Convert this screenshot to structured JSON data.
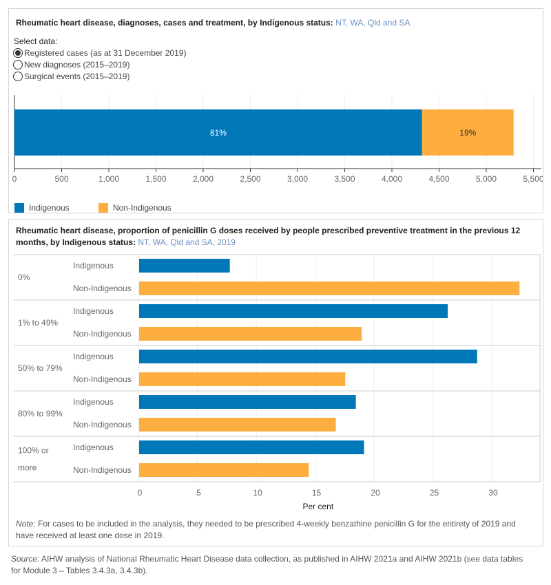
{
  "colors": {
    "indigenous": "#0078b8",
    "non_indigenous": "#fdae3f"
  },
  "top": {
    "title": "Rheumatic heart disease, diagnoses, cases and treatment, by Indigenous status:",
    "title_sub": "NT, WA, Qld and SA",
    "select_label": "Select data:",
    "options": [
      {
        "label": "Registered cases (as at 31 December 2019)",
        "selected": true
      },
      {
        "label": "New diagnoses (2015–2019)",
        "selected": false
      },
      {
        "label": "Surgical events (2015–2019)",
        "selected": false
      }
    ],
    "legend": [
      "Indigenous",
      "Non-Indigenous"
    ]
  },
  "bottom": {
    "title_line1": "Rheumatic heart disease, proportion of penicillin G doses received by people prescribed preventive treatment in the previous 12",
    "title_line2": "months, by Indigenous status:",
    "title_sub": "NT, WA, Qld and SA, 2019",
    "note_label": "Note:",
    "note_text": " For cases to be included in the analysis, they needed to be prescribed 4-weekly benzathine penicillin G for the entirety of 2019 and have received at least one dose in 2019."
  },
  "source": {
    "label": "Source:",
    "text": " AIHW analysis of National Rheumatic Heart Disease data collection, as published in AIHW 2021a and AIHW 2021b (see data tables for Module 3 – Tables 3.4.3a, 3.4.3b)."
  },
  "chart_data": [
    {
      "type": "bar",
      "orientation": "horizontal",
      "stacked": true,
      "series": [
        {
          "name": "Indigenous",
          "values": [
            4320
          ],
          "label": "81%"
        },
        {
          "name": "Non-Indigenous",
          "values": [
            970
          ],
          "label": "19%"
        }
      ],
      "xlim": [
        0,
        5500
      ],
      "xticks": [
        "0",
        "500",
        "1,000",
        "1,500",
        "2,000",
        "2,500",
        "3,000",
        "3,500",
        "4,000",
        "4,500",
        "5,000",
        "5,500"
      ],
      "grid": true,
      "legend": "bottom-left"
    },
    {
      "type": "bar",
      "orientation": "horizontal",
      "categories": [
        "0%",
        "1% to 49%",
        "50% to 79%",
        "80% to 99%",
        "100% or more"
      ],
      "series": [
        {
          "name": "Indigenous",
          "values": [
            7.7,
            26.2,
            28.7,
            18.4,
            19.1
          ]
        },
        {
          "name": "Non-Indigenous",
          "values": [
            32.3,
            18.9,
            17.5,
            16.7,
            14.4
          ]
        }
      ],
      "xlabel": "Per cent",
      "xlim": [
        0,
        34
      ],
      "xticks": [
        "0",
        "5",
        "10",
        "15",
        "20",
        "25",
        "30"
      ],
      "grid": true
    }
  ]
}
